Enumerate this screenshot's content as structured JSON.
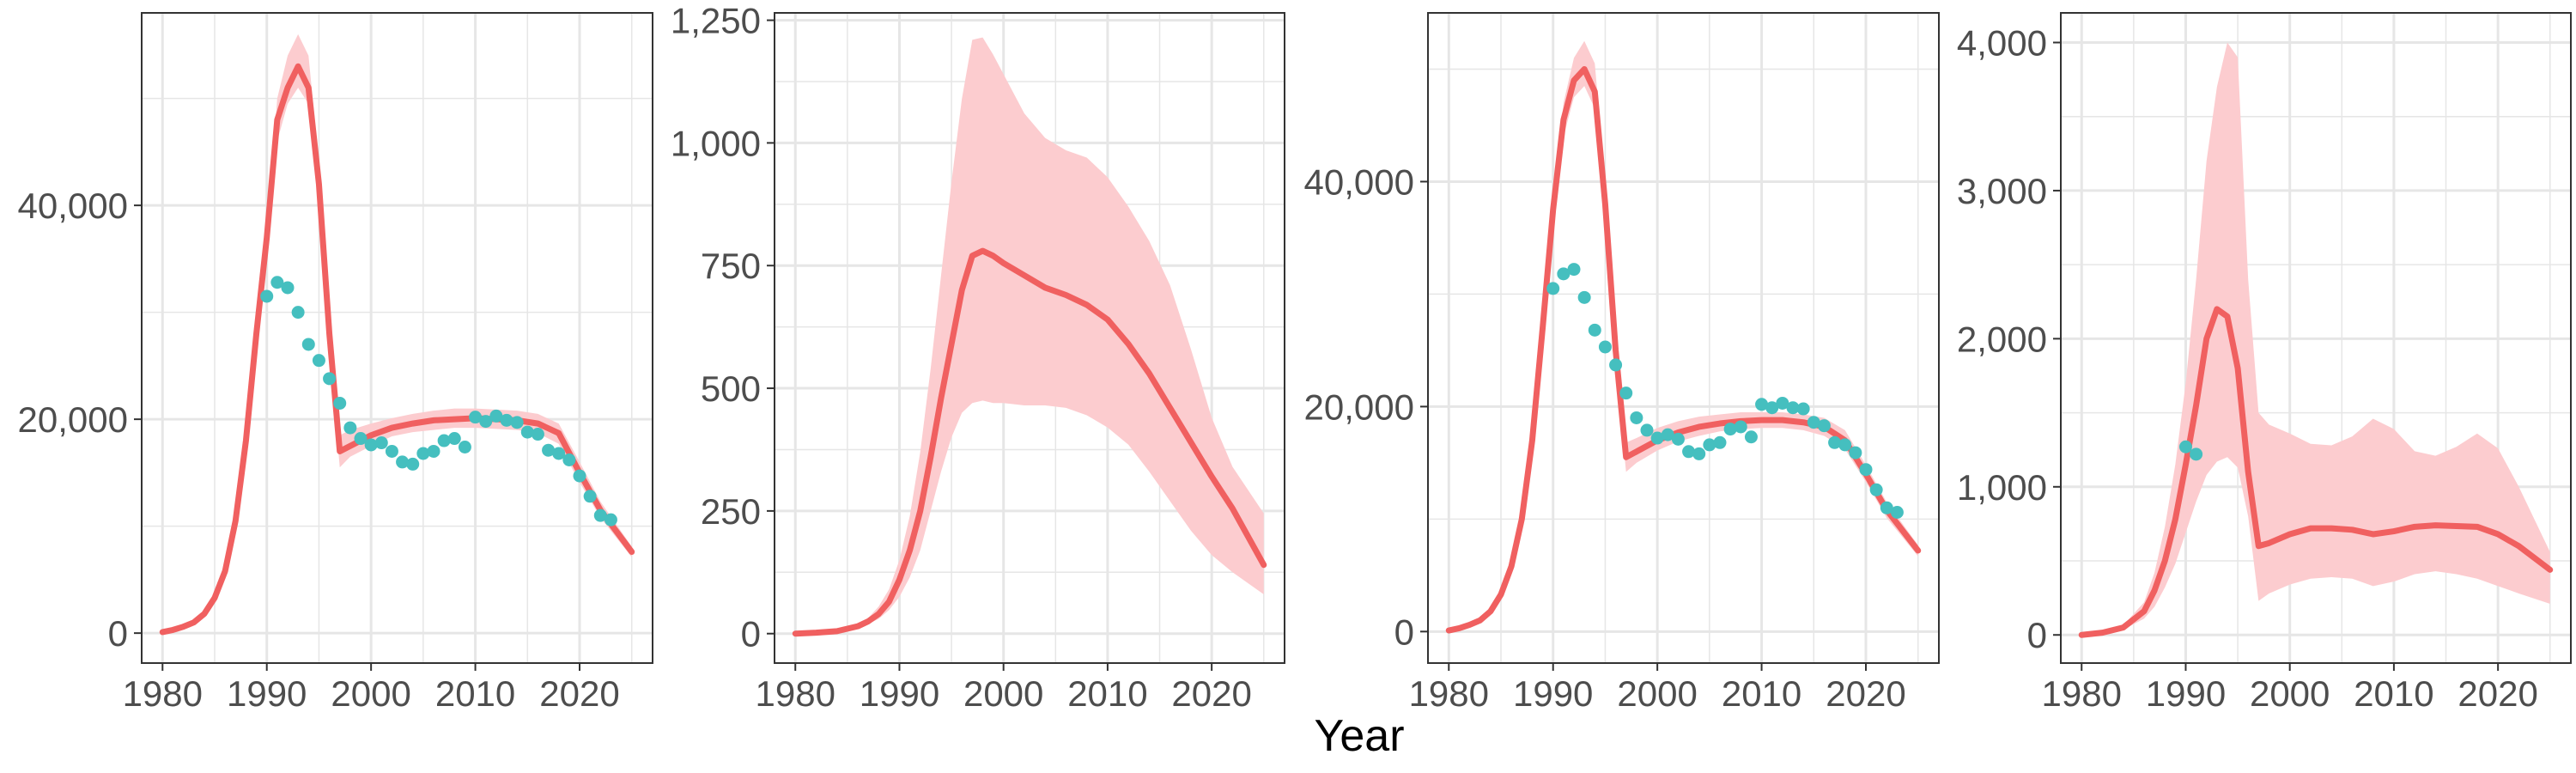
{
  "figure": {
    "xlabel": "Year",
    "model_color": "#f06060",
    "band_color": "#fccccf",
    "observed_color": "#45bfbf",
    "grid_color": "#e6e6e6",
    "frame_color": "#333333"
  },
  "chart_data": [
    {
      "type": "line",
      "grid": true,
      "xlim": [
        1978,
        2027
      ],
      "ylim": [
        -2800,
        58000
      ],
      "x_ticks": [
        1980,
        1990,
        2000,
        2010,
        2020
      ],
      "x_tick_labels": [
        "1980",
        "1990",
        "2000",
        "2010",
        "2020"
      ],
      "y_ticks": [
        0,
        20000,
        40000
      ],
      "y_tick_labels": [
        "0",
        "20,000",
        "40,000"
      ],
      "series": [
        {
          "role": "model",
          "x": [
            1980,
            1981,
            1982,
            1983,
            1984,
            1985,
            1986,
            1987,
            1988,
            1989,
            1990,
            1991,
            1992,
            1993,
            1994,
            1995,
            1996,
            1997,
            1998,
            2000,
            2002,
            2004,
            2006,
            2008,
            2010,
            2012,
            2014,
            2016,
            2018,
            2020,
            2022,
            2025
          ],
          "y": [
            100,
            300,
            600,
            1000,
            1800,
            3300,
            5800,
            10500,
            18000,
            28000,
            37000,
            48000,
            51000,
            53000,
            51000,
            42000,
            28000,
            17000,
            17500,
            18500,
            19200,
            19600,
            19900,
            20000,
            20100,
            20000,
            19900,
            19600,
            18700,
            15000,
            11500,
            7600
          ],
          "lower": [
            100,
            300,
            600,
            1000,
            1800,
            3300,
            5800,
            10500,
            18000,
            28000,
            37000,
            46000,
            49500,
            51000,
            49500,
            40000,
            26500,
            15500,
            16500,
            17500,
            18400,
            18800,
            19000,
            19200,
            19200,
            19100,
            19000,
            18700,
            17700,
            14100,
            10800,
            7100
          ],
          "upper": [
            100,
            300,
            600,
            1000,
            1800,
            3300,
            5800,
            10500,
            18000,
            28000,
            37000,
            50000,
            54000,
            56000,
            54000,
            44000,
            30000,
            18500,
            19000,
            19600,
            20100,
            20500,
            20800,
            21000,
            21000,
            20900,
            20800,
            20500,
            19600,
            16000,
            12300,
            8100
          ]
        },
        {
          "role": "observed",
          "type": "scatter",
          "x": [
            1990,
            1991,
            1992,
            1993,
            1994,
            1995,
            1996,
            1997,
            1998,
            1999,
            2000,
            2001,
            2002,
            2003,
            2004,
            2005,
            2006,
            2007,
            2008,
            2009,
            2010,
            2011,
            2012,
            2013,
            2014,
            2015,
            2016,
            2017,
            2018,
            2019,
            2020,
            2021,
            2022,
            2023
          ],
          "y": [
            31500,
            32800,
            32300,
            30000,
            27000,
            25500,
            23800,
            21500,
            19200,
            18200,
            17600,
            17800,
            17000,
            16000,
            15800,
            16800,
            17000,
            18000,
            18200,
            17400,
            20200,
            19800,
            20300,
            19900,
            19700,
            18800,
            18600,
            17100,
            16800,
            16200,
            14700,
            12800,
            11000,
            10600
          ]
        }
      ]
    },
    {
      "type": "line",
      "grid": true,
      "xlim": [
        1978,
        2027
      ],
      "ylim": [
        -60,
        1265
      ],
      "x_ticks": [
        1980,
        1990,
        2000,
        2010,
        2020
      ],
      "x_tick_labels": [
        "1980",
        "1990",
        "2000",
        "2010",
        "2020"
      ],
      "y_ticks": [
        0,
        250,
        500,
        750,
        1000,
        1250
      ],
      "y_tick_labels": [
        "0",
        "250",
        "500",
        "750",
        "1,000",
        "1,250"
      ],
      "series": [
        {
          "role": "model",
          "x": [
            1980,
            1982,
            1984,
            1986,
            1987,
            1988,
            1989,
            1990,
            1991,
            1992,
            1993,
            1994,
            1995,
            1996,
            1997,
            1998,
            1999,
            2000,
            2002,
            2004,
            2006,
            2008,
            2010,
            2012,
            2014,
            2016,
            2018,
            2020,
            2022,
            2025
          ],
          "y": [
            0,
            2,
            5,
            15,
            25,
            40,
            65,
            110,
            170,
            250,
            360,
            480,
            590,
            700,
            770,
            780,
            770,
            755,
            730,
            705,
            690,
            670,
            640,
            590,
            530,
            460,
            390,
            320,
            255,
            140
          ],
          "lower": [
            0,
            2,
            5,
            12,
            20,
            30,
            48,
            75,
            115,
            170,
            250,
            330,
            400,
            450,
            470,
            475,
            470,
            470,
            465,
            465,
            460,
            445,
            420,
            385,
            330,
            270,
            210,
            160,
            125,
            80
          ],
          "upper": [
            0,
            2,
            5,
            18,
            32,
            55,
            90,
            150,
            240,
            370,
            540,
            730,
            920,
            1090,
            1210,
            1215,
            1180,
            1140,
            1060,
            1010,
            985,
            970,
            930,
            870,
            800,
            710,
            580,
            440,
            340,
            245
          ]
        }
      ]
    },
    {
      "type": "line",
      "grid": true,
      "xlim": [
        1978,
        2027
      ],
      "ylim": [
        -2800,
        55000
      ],
      "x_ticks": [
        1980,
        1990,
        2000,
        2010,
        2020
      ],
      "x_tick_labels": [
        "1980",
        "1990",
        "2000",
        "2010",
        "2020"
      ],
      "y_ticks": [
        0,
        20000,
        40000
      ],
      "y_tick_labels": [
        "0",
        "20,000",
        "40,000"
      ],
      "series": [
        {
          "role": "model",
          "x": [
            1980,
            1981,
            1982,
            1983,
            1984,
            1985,
            1986,
            1987,
            1988,
            1989,
            1990,
            1991,
            1992,
            1993,
            1994,
            1995,
            1996,
            1997,
            1998,
            2000,
            2002,
            2004,
            2006,
            2008,
            2010,
            2012,
            2014,
            2016,
            2018,
            2020,
            2022,
            2025
          ],
          "y": [
            100,
            300,
            600,
            1000,
            1800,
            3300,
            5800,
            10000,
            17000,
            27000,
            37500,
            45500,
            49000,
            50000,
            48000,
            38000,
            25000,
            15500,
            16000,
            17000,
            17700,
            18200,
            18500,
            18700,
            18800,
            18800,
            18600,
            18200,
            17000,
            14000,
            10800,
            7200
          ],
          "lower": [
            100,
            300,
            600,
            1000,
            1800,
            3300,
            5800,
            10000,
            17000,
            27000,
            37500,
            44000,
            47500,
            48500,
            46500,
            36500,
            23500,
            14200,
            15000,
            16100,
            16900,
            17400,
            17800,
            18000,
            18100,
            18100,
            17900,
            17400,
            16200,
            13300,
            10100,
            6700
          ],
          "upper": [
            100,
            300,
            600,
            1000,
            1800,
            3300,
            5800,
            10000,
            17000,
            27000,
            37500,
            47000,
            51000,
            52500,
            50500,
            40000,
            26500,
            16800,
            17200,
            18100,
            18700,
            19100,
            19300,
            19500,
            19500,
            19500,
            19300,
            19000,
            17900,
            14800,
            11500,
            7700
          ]
        },
        {
          "role": "observed",
          "type": "scatter",
          "x": [
            1990,
            1991,
            1992,
            1993,
            1994,
            1995,
            1996,
            1997,
            1998,
            1999,
            2000,
            2001,
            2002,
            2003,
            2004,
            2005,
            2006,
            2007,
            2008,
            2009,
            2010,
            2011,
            2012,
            2013,
            2014,
            2015,
            2016,
            2017,
            2018,
            2019,
            2020,
            2021,
            2022,
            2023
          ],
          "y": [
            30500,
            31800,
            32200,
            29700,
            26800,
            25300,
            23700,
            21200,
            19000,
            17900,
            17200,
            17500,
            17100,
            16000,
            15800,
            16600,
            16800,
            18000,
            18200,
            17300,
            20200,
            19900,
            20300,
            19900,
            19800,
            18600,
            18300,
            16800,
            16600,
            15900,
            14400,
            12600,
            11000,
            10600
          ]
        }
      ]
    },
    {
      "type": "line",
      "grid": true,
      "xlim": [
        1978,
        2027
      ],
      "ylim": [
        -190,
        4200
      ],
      "x_ticks": [
        1980,
        1990,
        2000,
        2010,
        2020
      ],
      "x_tick_labels": [
        "1980",
        "1990",
        "2000",
        "2010",
        "2020"
      ],
      "y_ticks": [
        0,
        1000,
        2000,
        3000,
        4000
      ],
      "y_tick_labels": [
        "0",
        "1,000",
        "2,000",
        "3,000",
        "4,000"
      ],
      "series": [
        {
          "role": "model",
          "x": [
            1980,
            1982,
            1984,
            1986,
            1987,
            1988,
            1989,
            1990,
            1991,
            1992,
            1993,
            1994,
            1995,
            1996,
            1997,
            1998,
            2000,
            2002,
            2004,
            2006,
            2008,
            2010,
            2012,
            2014,
            2016,
            2018,
            2020,
            2022,
            2025
          ],
          "y": [
            0,
            15,
            50,
            160,
            300,
            500,
            780,
            1150,
            1550,
            2000,
            2200,
            2150,
            1800,
            1100,
            600,
            620,
            680,
            720,
            720,
            710,
            680,
            700,
            730,
            740,
            735,
            730,
            680,
            600,
            440
          ],
          "lower": [
            0,
            10,
            35,
            110,
            190,
            320,
            480,
            690,
            900,
            1080,
            1170,
            1200,
            1130,
            800,
            230,
            280,
            340,
            380,
            390,
            380,
            330,
            360,
            410,
            430,
            410,
            380,
            330,
            280,
            210
          ],
          "upper": [
            0,
            20,
            65,
            220,
            420,
            730,
            1150,
            1700,
            2400,
            3200,
            3700,
            4000,
            3900,
            2400,
            1500,
            1420,
            1360,
            1290,
            1280,
            1340,
            1460,
            1390,
            1240,
            1210,
            1270,
            1360,
            1260,
            1000,
            560
          ]
        },
        {
          "role": "observed",
          "type": "scatter",
          "x": [
            1990,
            1991
          ],
          "y": [
            1270,
            1220
          ]
        }
      ]
    }
  ]
}
